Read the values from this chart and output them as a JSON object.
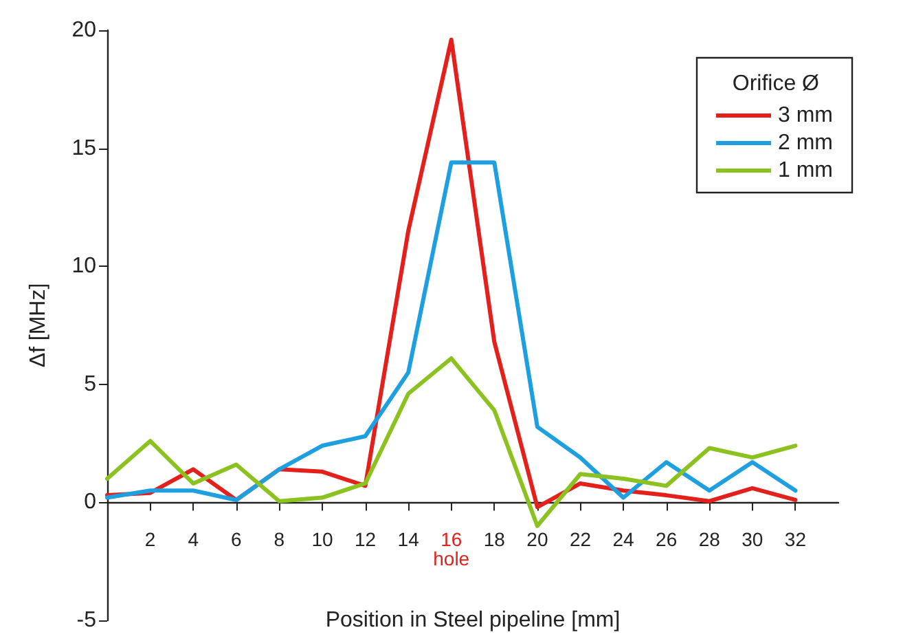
{
  "chart_data": {
    "type": "line",
    "xlabel": "Position in Steel pipeline [mm]",
    "ylabel": "Δf [MHz]",
    "legend_title": "Orifice Ø",
    "legend": "top right",
    "grid": false,
    "marker": "none",
    "line_style": "solid",
    "x": [
      0,
      2,
      4,
      6,
      8,
      10,
      12,
      14,
      16,
      18,
      20,
      22,
      24,
      26,
      28,
      30,
      32
    ],
    "xlim": [
      0,
      34
    ],
    "xticks": [
      2,
      4,
      6,
      8,
      10,
      12,
      14,
      {
        "value": 16,
        "label": "16\nhole"
      },
      18,
      20,
      22,
      24,
      26,
      28,
      30,
      32
    ],
    "ylim": [
      -5,
      20
    ],
    "yticks": [
      -5,
      0,
      5,
      10,
      15,
      20
    ],
    "series": [
      {
        "name": "3 mm",
        "color": "#e3201b",
        "values": [
          0.3,
          0.4,
          1.4,
          0.1,
          1.4,
          1.3,
          0.7,
          11.5,
          19.6,
          6.8,
          -0.2,
          0.8,
          0.5,
          0.3,
          0.05,
          0.6,
          0.1
        ]
      },
      {
        "name": "2 mm",
        "color": "#1ea0e0",
        "values": [
          0.2,
          0.5,
          0.5,
          0.1,
          1.4,
          2.4,
          2.8,
          5.5,
          14.4,
          14.4,
          3.2,
          1.9,
          0.2,
          1.7,
          0.5,
          1.7,
          0.5
        ]
      },
      {
        "name": "1 mm",
        "color": "#8cc220",
        "values": [
          1.0,
          2.6,
          0.8,
          1.6,
          0.05,
          0.2,
          0.8,
          4.6,
          6.1,
          3.9,
          -1.0,
          1.2,
          1.0,
          0.7,
          2.3,
          1.9,
          2.4
        ]
      }
    ]
  }
}
